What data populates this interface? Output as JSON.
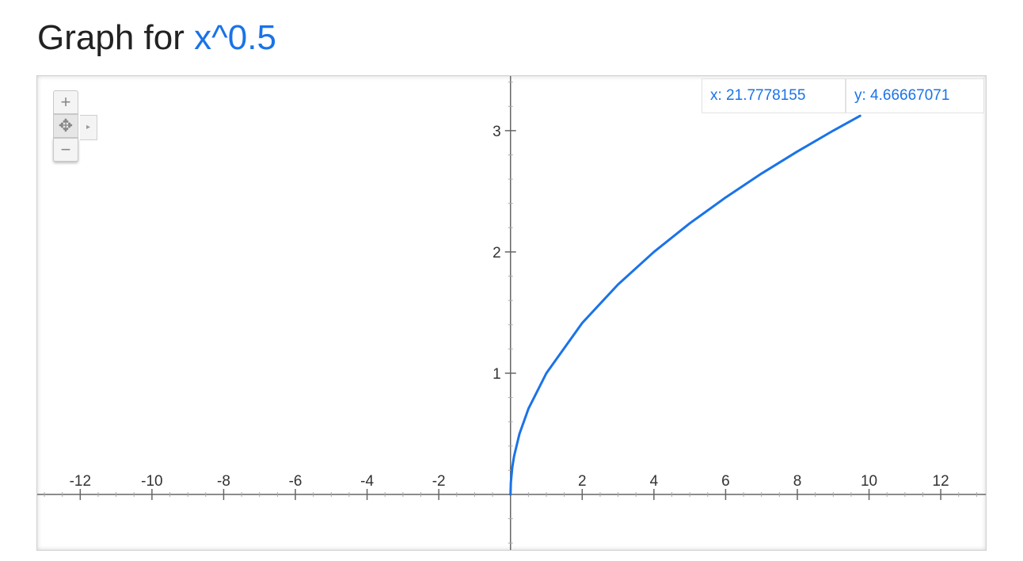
{
  "title": {
    "prefix": "Graph for",
    "function": "x^0.5"
  },
  "readout": {
    "x": "x: 21.7778155",
    "y": "y: 4.66667071"
  },
  "controls": {
    "zoom_in": "+",
    "zoom_out": "−",
    "pan": "✥",
    "expand": "▸"
  },
  "colors": {
    "curve": "#1a73e8",
    "axis": "#666666",
    "text": "#222222"
  },
  "chart_data": {
    "type": "line",
    "function": "x^0.5",
    "xlim": [
      -13.2,
      13.3
    ],
    "ylim": [
      -0.47,
      3.45
    ],
    "x_ticks": [
      -12,
      -10,
      -8,
      -6,
      -4,
      -2,
      2,
      4,
      6,
      8,
      10,
      12
    ],
    "y_ticks": [
      1,
      2,
      3
    ],
    "grid": false,
    "series": [
      {
        "x": [
          0,
          0.01,
          0.05,
          0.1,
          0.25,
          0.5,
          1,
          2,
          3,
          4,
          5,
          6,
          7,
          8,
          9,
          9.75
        ],
        "y": [
          0,
          0.1,
          0.224,
          0.316,
          0.5,
          0.707,
          1,
          1.414,
          1.732,
          2,
          2.236,
          2.449,
          2.646,
          2.828,
          3,
          3.122
        ]
      }
    ]
  }
}
